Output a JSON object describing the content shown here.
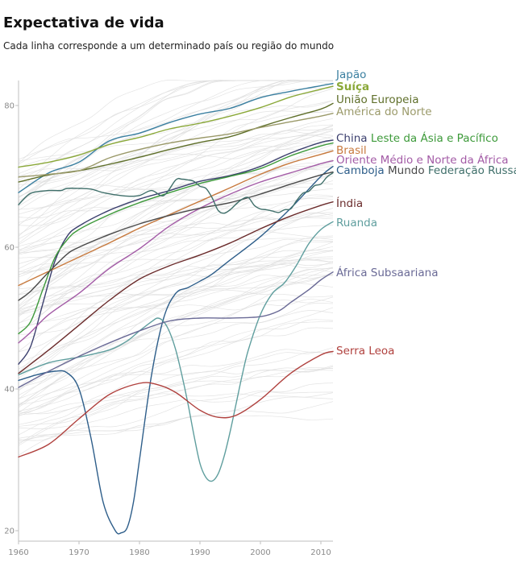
{
  "title": "Expectativa de vida",
  "subtitle": "Cada linha corresponde a um determinado país ou região do mundo",
  "chart_data": {
    "type": "line",
    "title": "Expectativa de vida",
    "subtitle": "Cada linha corresponde a um determinado país ou região do mundo",
    "xlabel": "",
    "ylabel": "",
    "xlim": [
      1960,
      2012
    ],
    "ylim": [
      19,
      84.5
    ],
    "xticks": [
      1960,
      1970,
      1980,
      1990,
      2000,
      2010
    ],
    "yticks": [
      20,
      40,
      60,
      80
    ],
    "grid": false,
    "legend": "direct labels at line ends",
    "series": [
      {
        "name": "Japão",
        "color": "#3a7fa0",
        "width": 1.4,
        "bold": false,
        "points": [
          [
            1960,
            67.7
          ],
          [
            1965,
            70.5
          ],
          [
            1970,
            72.0
          ],
          [
            1975,
            75.0
          ],
          [
            1980,
            76.1
          ],
          [
            1985,
            77.6
          ],
          [
            1990,
            78.8
          ],
          [
            1995,
            79.6
          ],
          [
            2000,
            81.1
          ],
          [
            2005,
            82.0
          ],
          [
            2010,
            82.8
          ],
          [
            2012,
            83.1
          ]
        ]
      },
      {
        "name": "Suíça",
        "color": "#8aa838",
        "width": 2.8,
        "bold": true,
        "points": [
          [
            1960,
            71.3
          ],
          [
            1965,
            72.0
          ],
          [
            1970,
            73.0
          ],
          [
            1975,
            74.5
          ],
          [
            1980,
            75.5
          ],
          [
            1985,
            76.7
          ],
          [
            1990,
            77.5
          ],
          [
            1995,
            78.5
          ],
          [
            2000,
            79.7
          ],
          [
            2005,
            81.2
          ],
          [
            2010,
            82.3
          ],
          [
            2012,
            82.7
          ]
        ]
      },
      {
        "name": "União Europeia",
        "color": "#5f6f2a",
        "width": 1.4,
        "bold": false,
        "points": [
          [
            1960,
            69.2
          ],
          [
            1965,
            70.2
          ],
          [
            1970,
            70.8
          ],
          [
            1975,
            71.7
          ],
          [
            1980,
            72.7
          ],
          [
            1985,
            73.8
          ],
          [
            1990,
            74.8
          ],
          [
            1995,
            75.6
          ],
          [
            2000,
            77.0
          ],
          [
            2005,
            78.3
          ],
          [
            2010,
            79.5
          ],
          [
            2012,
            80.3
          ]
        ]
      },
      {
        "name": "América do Norte",
        "color": "#9b9a6a",
        "width": 1.4,
        "bold": false,
        "points": [
          [
            1960,
            69.9
          ],
          [
            1965,
            70.3
          ],
          [
            1970,
            70.8
          ],
          [
            1975,
            72.6
          ],
          [
            1980,
            73.8
          ],
          [
            1985,
            74.7
          ],
          [
            1990,
            75.4
          ],
          [
            1995,
            76.0
          ],
          [
            2000,
            76.9
          ],
          [
            2005,
            77.7
          ],
          [
            2010,
            78.5
          ],
          [
            2012,
            78.9
          ]
        ]
      },
      {
        "name": "China",
        "color": "#3b3f6e",
        "width": 1.4,
        "bold": false,
        "points": [
          [
            1960,
            43.5
          ],
          [
            1962,
            46.0
          ],
          [
            1964,
            52.0
          ],
          [
            1966,
            58.0
          ],
          [
            1968,
            61.5
          ],
          [
            1970,
            63.0
          ],
          [
            1975,
            65.2
          ],
          [
            1980,
            66.8
          ],
          [
            1985,
            68.0
          ],
          [
            1990,
            69.3
          ],
          [
            1995,
            70.1
          ],
          [
            2000,
            71.4
          ],
          [
            2005,
            73.3
          ],
          [
            2010,
            74.8
          ],
          [
            2012,
            75.1
          ]
        ]
      },
      {
        "name": "Leste da Ásia e Pacífico",
        "color": "#3d9a3a",
        "width": 1.4,
        "bold": false,
        "points": [
          [
            1960,
            47.8
          ],
          [
            1962,
            49.5
          ],
          [
            1964,
            54.0
          ],
          [
            1966,
            58.5
          ],
          [
            1968,
            61.0
          ],
          [
            1970,
            62.5
          ],
          [
            1975,
            64.6
          ],
          [
            1980,
            66.3
          ],
          [
            1985,
            67.7
          ],
          [
            1990,
            69.0
          ],
          [
            1995,
            70.0
          ],
          [
            2000,
            71.1
          ],
          [
            2005,
            72.9
          ],
          [
            2010,
            74.3
          ],
          [
            2012,
            74.7
          ]
        ]
      },
      {
        "name": "Brasil",
        "color": "#c87a3e",
        "width": 1.4,
        "bold": false,
        "points": [
          [
            1960,
            54.6
          ],
          [
            1965,
            56.6
          ],
          [
            1970,
            58.6
          ],
          [
            1975,
            60.6
          ],
          [
            1980,
            62.7
          ],
          [
            1985,
            64.6
          ],
          [
            1990,
            66.5
          ],
          [
            1995,
            68.4
          ],
          [
            2000,
            70.3
          ],
          [
            2005,
            71.9
          ],
          [
            2010,
            73.1
          ],
          [
            2012,
            73.6
          ]
        ]
      },
      {
        "name": "Oriente Médio e Norte da África",
        "color": "#a35ba6",
        "width": 1.4,
        "bold": false,
        "points": [
          [
            1960,
            46.5
          ],
          [
            1962,
            48.0
          ],
          [
            1965,
            50.5
          ],
          [
            1970,
            53.5
          ],
          [
            1975,
            57.0
          ],
          [
            1980,
            59.8
          ],
          [
            1985,
            63.0
          ],
          [
            1990,
            65.5
          ],
          [
            1995,
            67.5
          ],
          [
            2000,
            69.2
          ],
          [
            2005,
            70.5
          ],
          [
            2010,
            71.8
          ],
          [
            2012,
            72.2
          ]
        ]
      },
      {
        "name": "Camboja",
        "color": "#2e5e8a",
        "width": 1.4,
        "bold": false,
        "points": [
          [
            1960,
            41.2
          ],
          [
            1963,
            42.0
          ],
          [
            1966,
            42.5
          ],
          [
            1968,
            42.3
          ],
          [
            1970,
            40.0
          ],
          [
            1972,
            33.0
          ],
          [
            1974,
            24.0
          ],
          [
            1976,
            20.0
          ],
          [
            1977,
            19.7
          ],
          [
            1978,
            20.5
          ],
          [
            1979,
            24.0
          ],
          [
            1980,
            30.0
          ],
          [
            1982,
            42.0
          ],
          [
            1984,
            50.0
          ],
          [
            1986,
            53.5
          ],
          [
            1988,
            54.3
          ],
          [
            1990,
            55.2
          ],
          [
            1992,
            56.2
          ],
          [
            1995,
            58.2
          ],
          [
            2000,
            61.5
          ],
          [
            2005,
            65.5
          ],
          [
            2010,
            70.0
          ],
          [
            2012,
            71.4
          ]
        ]
      },
      {
        "name": "Mundo",
        "color": "#4a4a4a",
        "width": 2.8,
        "bold": false,
        "points": [
          [
            1960,
            52.5
          ],
          [
            1962,
            53.8
          ],
          [
            1965,
            56.5
          ],
          [
            1968,
            59.0
          ],
          [
            1970,
            60.0
          ],
          [
            1975,
            61.8
          ],
          [
            1980,
            63.3
          ],
          [
            1985,
            64.5
          ],
          [
            1990,
            65.5
          ],
          [
            1995,
            66.3
          ],
          [
            2000,
            67.5
          ],
          [
            2005,
            68.9
          ],
          [
            2010,
            70.2
          ],
          [
            2012,
            70.6
          ]
        ]
      },
      {
        "name": "Federação Russa",
        "color": "#3f6f6a",
        "width": 1.4,
        "bold": false,
        "points": [
          [
            1960,
            66.0
          ],
          [
            1962,
            67.6
          ],
          [
            1965,
            68.0
          ],
          [
            1967,
            68.0
          ],
          [
            1968,
            68.3
          ],
          [
            1970,
            68.3
          ],
          [
            1972,
            68.2
          ],
          [
            1974,
            67.7
          ],
          [
            1976,
            67.4
          ],
          [
            1978,
            67.2
          ],
          [
            1980,
            67.3
          ],
          [
            1982,
            68.0
          ],
          [
            1984,
            67.3
          ],
          [
            1986,
            69.5
          ],
          [
            1987,
            69.6
          ],
          [
            1988,
            69.5
          ],
          [
            1989,
            69.3
          ],
          [
            1990,
            68.6
          ],
          [
            1991,
            68.3
          ],
          [
            1992,
            67.0
          ],
          [
            1993,
            65.2
          ],
          [
            1994,
            64.8
          ],
          [
            1995,
            65.3
          ],
          [
            1996,
            66.1
          ],
          [
            1997,
            66.8
          ],
          [
            1998,
            67.0
          ],
          [
            1999,
            65.9
          ],
          [
            2000,
            65.4
          ],
          [
            2001,
            65.3
          ],
          [
            2002,
            65.1
          ],
          [
            2003,
            64.9
          ],
          [
            2004,
            65.3
          ],
          [
            2005,
            65.4
          ],
          [
            2006,
            66.6
          ],
          [
            2007,
            67.6
          ],
          [
            2008,
            67.9
          ],
          [
            2009,
            68.7
          ],
          [
            2010,
            68.9
          ],
          [
            2011,
            69.9
          ],
          [
            2012,
            70.5
          ]
        ]
      },
      {
        "name": "Índia",
        "color": "#6b2c2c",
        "width": 1.4,
        "bold": false,
        "points": [
          [
            1960,
            42.2
          ],
          [
            1965,
            45.5
          ],
          [
            1970,
            49.0
          ],
          [
            1975,
            52.5
          ],
          [
            1980,
            55.5
          ],
          [
            1985,
            57.4
          ],
          [
            1990,
            58.9
          ],
          [
            1995,
            60.6
          ],
          [
            2000,
            62.6
          ],
          [
            2005,
            64.4
          ],
          [
            2010,
            65.9
          ],
          [
            2012,
            66.4
          ]
        ]
      },
      {
        "name": "Ruanda",
        "color": "#5f9e9e",
        "width": 1.4,
        "bold": false,
        "points": [
          [
            1960,
            42.0
          ],
          [
            1965,
            43.7
          ],
          [
            1970,
            44.5
          ],
          [
            1975,
            45.5
          ],
          [
            1978,
            46.8
          ],
          [
            1980,
            48.2
          ],
          [
            1982,
            49.5
          ],
          [
            1983,
            50.0
          ],
          [
            1984,
            49.5
          ],
          [
            1985,
            48.0
          ],
          [
            1986,
            45.5
          ],
          [
            1987,
            42.0
          ],
          [
            1988,
            38.0
          ],
          [
            1989,
            33.5
          ],
          [
            1990,
            29.5
          ],
          [
            1991,
            27.5
          ],
          [
            1992,
            27.0
          ],
          [
            1993,
            28.0
          ],
          [
            1994,
            30.5
          ],
          [
            1995,
            34.0
          ],
          [
            1996,
            38.0
          ],
          [
            1997,
            42.0
          ],
          [
            1998,
            45.5
          ],
          [
            2000,
            50.5
          ],
          [
            2002,
            53.5
          ],
          [
            2004,
            55.0
          ],
          [
            2006,
            57.5
          ],
          [
            2008,
            60.5
          ],
          [
            2010,
            62.5
          ],
          [
            2012,
            63.6
          ]
        ]
      },
      {
        "name": "África Subsaariana",
        "color": "#6a6a96",
        "width": 1.4,
        "bold": false,
        "points": [
          [
            1960,
            40.2
          ],
          [
            1965,
            42.5
          ],
          [
            1970,
            44.6
          ],
          [
            1975,
            46.5
          ],
          [
            1980,
            48.2
          ],
          [
            1985,
            49.6
          ],
          [
            1990,
            50.0
          ],
          [
            1995,
            50.0
          ],
          [
            2000,
            50.2
          ],
          [
            2003,
            51.0
          ],
          [
            2005,
            52.2
          ],
          [
            2008,
            54.0
          ],
          [
            2010,
            55.4
          ],
          [
            2012,
            56.5
          ]
        ]
      },
      {
        "name": "Serra Leoa",
        "color": "#b0413e",
        "width": 1.4,
        "bold": false,
        "points": [
          [
            1960,
            30.4
          ],
          [
            1965,
            32.2
          ],
          [
            1970,
            35.8
          ],
          [
            1975,
            39.2
          ],
          [
            1980,
            40.8
          ],
          [
            1983,
            40.6
          ],
          [
            1986,
            39.5
          ],
          [
            1990,
            37.0
          ],
          [
            1993,
            36.0
          ],
          [
            1996,
            36.3
          ],
          [
            2000,
            38.5
          ],
          [
            2005,
            42.2
          ],
          [
            2010,
            44.8
          ],
          [
            2012,
            45.3
          ]
        ]
      }
    ],
    "labels": [
      {
        "series": [
          "Japão"
        ]
      },
      {
        "series": [
          "Suíça"
        ]
      },
      {
        "series": [
          "União Europeia"
        ]
      },
      {
        "series": [
          "América do Norte"
        ]
      },
      {
        "series": [
          "China",
          "Leste da Ásia e Pacífico"
        ]
      },
      {
        "series": [
          "Brasil"
        ]
      },
      {
        "series": [
          "Oriente Médio e Norte da África"
        ]
      },
      {
        "series": [
          "Camboja",
          "Mundo",
          "Federação Russa"
        ]
      },
      {
        "series": [
          "Índia"
        ]
      },
      {
        "series": [
          "Ruanda"
        ]
      },
      {
        "series": [
          "África Subsaariana"
        ]
      },
      {
        "series": [
          "Serra Leoa"
        ]
      }
    ]
  }
}
